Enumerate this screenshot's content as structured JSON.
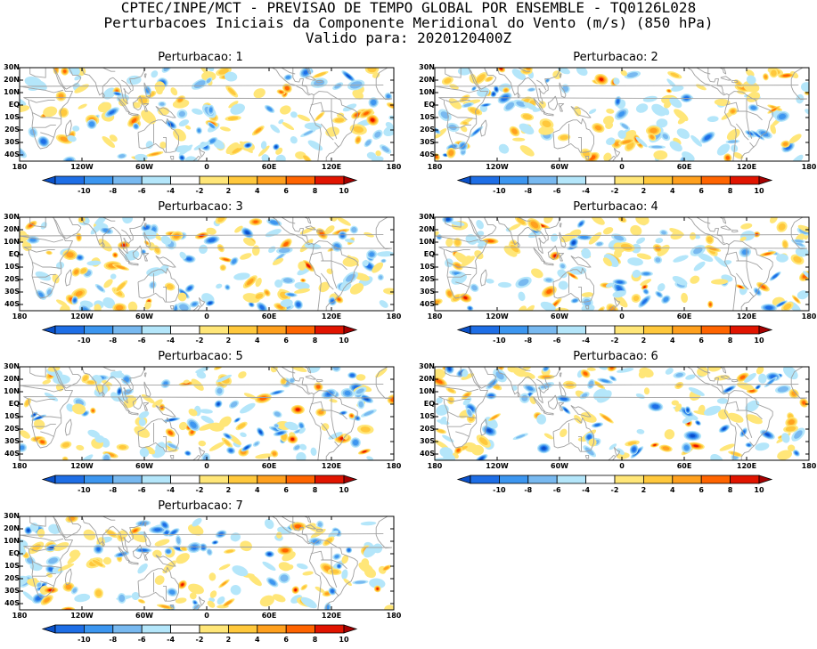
{
  "header": {
    "line1": "CPTEC/INPE/MCT - PREVISAO DE TEMPO GLOBAL POR ENSEMBLE - TQ0126L028",
    "line2": "Perturbacoes Iniciais da Componente Meridional do Vento (m/s) (850 hPa)",
    "line3": "Valido para: 2020120400Z"
  },
  "panels": [
    {
      "title": "Perturbacao: 1",
      "seed": 11
    },
    {
      "title": "Perturbacao: 2",
      "seed": 23
    },
    {
      "title": "Perturbacao: 3",
      "seed": 37
    },
    {
      "title": "Perturbacao: 4",
      "seed": 41
    },
    {
      "title": "Perturbacao: 5",
      "seed": 53
    },
    {
      "title": "Perturbacao: 6",
      "seed": 67
    },
    {
      "title": "Perturbacao: 7",
      "seed": 79
    }
  ],
  "y_axis_labels": [
    "30N",
    "20N",
    "10N",
    "EQ",
    "10S",
    "20S",
    "30S",
    "40S"
  ],
  "x_axis_labels": [
    "180",
    "120W",
    "60W",
    "0",
    "60E",
    "120E",
    "180"
  ],
  "colorbar": {
    "labels": [
      "-10",
      "-8",
      "-6",
      "-4",
      "-2",
      "2",
      "4",
      "6",
      "8",
      "10"
    ],
    "colors": [
      "#0a50c8",
      "#1e6ee6",
      "#3c96f0",
      "#78b9f0",
      "#b4e6fa",
      "#ffffff",
      "#ffe678",
      "#ffc83c",
      "#ffa01e",
      "#ff6400",
      "#e11400",
      "#a50000"
    ]
  },
  "map_style": {
    "coast_color": "#a0a0a0"
  }
}
